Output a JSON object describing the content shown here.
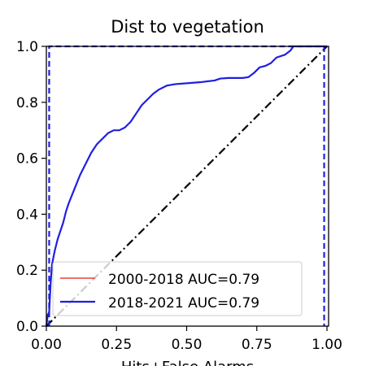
{
  "chart_data": {
    "type": "line",
    "title": "Dist to vegetation",
    "xlabel": "Hits+False Alarms",
    "ylabel": "",
    "xlim": [
      0,
      1
    ],
    "ylim": [
      0,
      1
    ],
    "xticks": [
      "0.00",
      "0.25",
      "0.50",
      "0.75",
      "1.00"
    ],
    "yticks": [
      "0.0",
      "0.2",
      "0.4",
      "0.6",
      "0.8",
      "1.0"
    ],
    "legend": {
      "placement": "lower-right",
      "entries": [
        "2000-2018 AUC=0.79",
        "2018-2021 AUC=0.79"
      ]
    },
    "colors": {
      "series1": "#e8413c",
      "series2": "#1f1fe0",
      "reference": "#000000",
      "bound": "#1f1fe0"
    },
    "series": [
      {
        "name": "2000-2018 AUC=0.79",
        "x": [
          0,
          0.005,
          0.01,
          0.015,
          0.02,
          0.03,
          0.04,
          0.05,
          0.06,
          0.07,
          0.08,
          0.1,
          0.12,
          0.14,
          0.16,
          0.18,
          0.2,
          0.22,
          0.24,
          0.26,
          0.28,
          0.3,
          0.32,
          0.34,
          0.36,
          0.38,
          0.4,
          0.43,
          0.46,
          0.5,
          0.55,
          0.6,
          0.62,
          0.65,
          0.7,
          0.72,
          0.74,
          0.76,
          0.78,
          0.8,
          0.82,
          0.85,
          0.87,
          0.88,
          0.9,
          0.95,
          1.0
        ],
        "y": [
          0,
          0.04,
          0.05,
          0.15,
          0.22,
          0.27,
          0.31,
          0.34,
          0.37,
          0.41,
          0.44,
          0.49,
          0.54,
          0.58,
          0.62,
          0.65,
          0.67,
          0.69,
          0.7,
          0.7,
          0.71,
          0.73,
          0.76,
          0.79,
          0.81,
          0.83,
          0.845,
          0.86,
          0.865,
          0.868,
          0.872,
          0.878,
          0.885,
          0.887,
          0.887,
          0.89,
          0.905,
          0.925,
          0.93,
          0.94,
          0.96,
          0.97,
          0.985,
          1.0,
          1.0,
          1.0,
          1.0
        ]
      },
      {
        "name": "2018-2021 AUC=0.79",
        "x": [
          0,
          0.005,
          0.01,
          0.015,
          0.02,
          0.03,
          0.04,
          0.05,
          0.06,
          0.07,
          0.08,
          0.1,
          0.12,
          0.14,
          0.16,
          0.18,
          0.2,
          0.22,
          0.24,
          0.26,
          0.28,
          0.3,
          0.32,
          0.34,
          0.36,
          0.38,
          0.4,
          0.43,
          0.46,
          0.5,
          0.55,
          0.6,
          0.62,
          0.65,
          0.7,
          0.72,
          0.74,
          0.76,
          0.78,
          0.8,
          0.82,
          0.85,
          0.87,
          0.88,
          0.9,
          0.95,
          1.0
        ],
        "y": [
          0,
          0.04,
          0.05,
          0.15,
          0.22,
          0.27,
          0.31,
          0.34,
          0.37,
          0.41,
          0.44,
          0.49,
          0.54,
          0.58,
          0.62,
          0.65,
          0.67,
          0.69,
          0.7,
          0.7,
          0.71,
          0.73,
          0.76,
          0.79,
          0.81,
          0.83,
          0.845,
          0.86,
          0.865,
          0.868,
          0.872,
          0.878,
          0.885,
          0.887,
          0.887,
          0.89,
          0.905,
          0.925,
          0.93,
          0.94,
          0.96,
          0.97,
          0.985,
          1.0,
          1.0,
          1.0,
          1.0
        ]
      }
    ],
    "reference_line": {
      "x": [
        0,
        1
      ],
      "y": [
        0,
        1
      ],
      "style": "dash-dot"
    },
    "bound_line": {
      "x": [
        0.01,
        0.01,
        0.99,
        0.99
      ],
      "y": [
        0,
        1,
        1,
        0
      ],
      "style": "dashed"
    }
  }
}
